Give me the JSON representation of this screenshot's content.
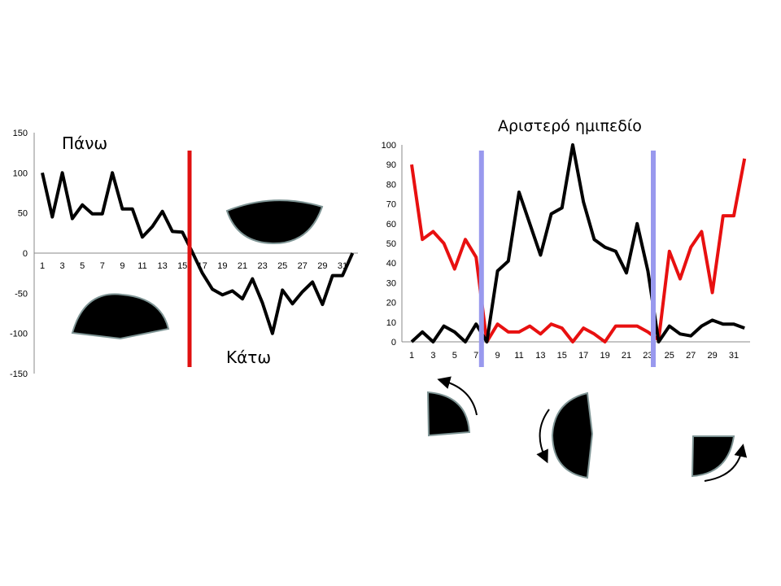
{
  "chart_data": [
    {
      "type": "line",
      "x": [
        1,
        2,
        3,
        4,
        5,
        6,
        7,
        8,
        9,
        10,
        11,
        12,
        13,
        14,
        15,
        16,
        17,
        18,
        19,
        20,
        21,
        22,
        23,
        24,
        25,
        26,
        27,
        28,
        29,
        30,
        31,
        32
      ],
      "x_tick_labels": [
        "1",
        "3",
        "5",
        "7",
        "9",
        "11",
        "13",
        "15",
        "17",
        "19",
        "21",
        "23",
        "25",
        "27",
        "29",
        "31"
      ],
      "y_tick_labels": [
        "150",
        "100",
        "50",
        "0",
        "-50",
        "-100",
        "-150"
      ],
      "ylim": [
        -150,
        150
      ],
      "series": [
        {
          "color": "#000000",
          "values": [
            100,
            45,
            100,
            43,
            60,
            49,
            49,
            100,
            55,
            55,
            20,
            33,
            52,
            27,
            26,
            1,
            -25,
            -45,
            -52,
            -47,
            -57,
            -32,
            -62,
            -100,
            -46,
            -63,
            -48,
            -36,
            -64,
            -28,
            -28,
            0
          ]
        }
      ],
      "annotations": {
        "top_label": "Πάνω",
        "bottom_label": "Κάτω",
        "divider_color": "#e01010",
        "divider_at_x": 16
      },
      "grid": false
    },
    {
      "type": "line",
      "title": "Αριστερό ημιπεδίο",
      "x": [
        1,
        2,
        3,
        4,
        5,
        6,
        7,
        8,
        9,
        10,
        11,
        12,
        13,
        14,
        15,
        16,
        17,
        18,
        19,
        20,
        21,
        22,
        23,
        24,
        25,
        26,
        27,
        28,
        29,
        30,
        31,
        32
      ],
      "x_tick_labels": [
        "1",
        "3",
        "5",
        "7",
        "9",
        "11",
        "13",
        "15",
        "17",
        "19",
        "21",
        "23",
        "25",
        "27",
        "29",
        "31"
      ],
      "y_tick_labels": [
        "100",
        "90",
        "80",
        "70",
        "60",
        "50",
        "40",
        "30",
        "20",
        "10",
        "0"
      ],
      "ylim": [
        0,
        100
      ],
      "series": [
        {
          "color": "#e81010",
          "values": [
            90,
            52,
            56,
            50,
            37,
            52,
            43,
            0,
            9,
            5,
            5,
            8,
            4,
            9,
            7,
            0,
            7,
            4,
            0,
            8,
            8,
            8,
            5,
            1,
            46,
            32,
            48,
            56,
            25,
            64,
            64,
            93
          ]
        },
        {
          "color": "#000000",
          "values": [
            0,
            5,
            0,
            8,
            5,
            0,
            9,
            0,
            36,
            41,
            76,
            60,
            44,
            65,
            68,
            100,
            71,
            52,
            48,
            46,
            35,
            60,
            36,
            0,
            8,
            4,
            3,
            8,
            11,
            9,
            9,
            7
          ]
        }
      ],
      "annotations": {
        "divider_color": "#9999ee",
        "divider_at_x": [
          7.5,
          23.5
        ]
      },
      "grid": false
    }
  ],
  "shapes": {
    "fill": "#000000",
    "stroke": "#7f9595"
  }
}
